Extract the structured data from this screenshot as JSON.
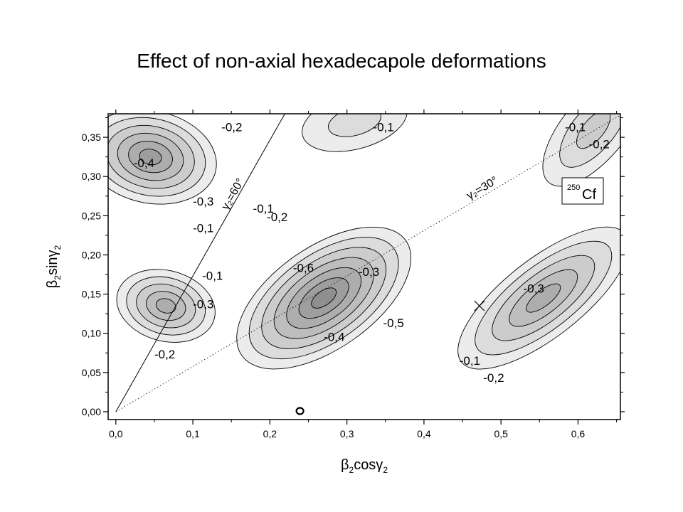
{
  "title": "Effect of non-axial hexadecapole deformations",
  "chart_data": {
    "type": "contour",
    "xlabel": "β₂cosγ₂",
    "ylabel": "β₂sinγ₂",
    "xlim": [
      -0.01,
      0.655
    ],
    "ylim": [
      -0.01,
      0.38
    ],
    "x_ticks": [
      {
        "v": 0.0,
        "label": "0,0"
      },
      {
        "v": 0.1,
        "label": "0,1"
      },
      {
        "v": 0.2,
        "label": "0,2"
      },
      {
        "v": 0.3,
        "label": "0,3"
      },
      {
        "v": 0.4,
        "label": "0,4"
      },
      {
        "v": 0.5,
        "label": "0,5"
      },
      {
        "v": 0.6,
        "label": "0,6"
      }
    ],
    "y_ticks": [
      {
        "v": 0.0,
        "label": "0,00"
      },
      {
        "v": 0.05,
        "label": "0,05"
      },
      {
        "v": 0.1,
        "label": "0,10"
      },
      {
        "v": 0.15,
        "label": "0,15"
      },
      {
        "v": 0.2,
        "label": "0,20"
      },
      {
        "v": 0.25,
        "label": "0,25"
      },
      {
        "v": 0.3,
        "label": "0,30"
      },
      {
        "v": 0.35,
        "label": "0,35"
      }
    ],
    "nucleus_label": "Cf",
    "nucleus_mass": "250",
    "line_labels": [
      {
        "text": "γ₂=60°",
        "angle": 60
      },
      {
        "text": "γ₂=30°",
        "angle": 30
      }
    ],
    "minima": [
      {
        "name": "upper-left",
        "cx": 0.045,
        "cy": 0.325,
        "depth": 0.45
      },
      {
        "name": "left",
        "cx": 0.065,
        "cy": 0.135,
        "depth": 0.35
      },
      {
        "name": "central",
        "cx": 0.27,
        "cy": 0.145,
        "depth": 0.65
      },
      {
        "name": "right",
        "cx": 0.555,
        "cy": 0.145,
        "depth": 0.35
      },
      {
        "name": "top-center",
        "cx": 0.31,
        "cy": 0.37,
        "depth": 0.12
      },
      {
        "name": "top-right",
        "cx": 0.62,
        "cy": 0.36,
        "depth": 0.2
      }
    ],
    "contour_labels": [
      {
        "text": "-0,2",
        "x": 0.137,
        "y": 0.358
      },
      {
        "text": "-0,4",
        "x": 0.023,
        "y": 0.312
      },
      {
        "text": "-0,3",
        "x": 0.1,
        "y": 0.263
      },
      {
        "text": "-0,1",
        "x": 0.1,
        "y": 0.229
      },
      {
        "text": "-0,1",
        "x": 0.178,
        "y": 0.254
      },
      {
        "text": "-0,2",
        "x": 0.196,
        "y": 0.243
      },
      {
        "text": "-0,1",
        "x": 0.112,
        "y": 0.168
      },
      {
        "text": "-0,3",
        "x": 0.1,
        "y": 0.132
      },
      {
        "text": "-0,2",
        "x": 0.05,
        "y": 0.068
      },
      {
        "text": "-0,6",
        "x": 0.23,
        "y": 0.178
      },
      {
        "text": "-0,3",
        "x": 0.315,
        "y": 0.173
      },
      {
        "text": "-0,5",
        "x": 0.347,
        "y": 0.108
      },
      {
        "text": "-0,4",
        "x": 0.27,
        "y": 0.09
      },
      {
        "text": "-0,1",
        "x": 0.334,
        "y": 0.358
      },
      {
        "text": "-0,1",
        "x": 0.583,
        "y": 0.358
      },
      {
        "text": "-0,2",
        "x": 0.614,
        "y": 0.336
      },
      {
        "text": "-0,3",
        "x": 0.529,
        "y": 0.152
      },
      {
        "text": "-0,1",
        "x": 0.446,
        "y": 0.06
      },
      {
        "text": "-0,2",
        "x": 0.477,
        "y": 0.038
      }
    ],
    "markers": [
      {
        "symbol": "x",
        "x": 0.472,
        "y": 0.135
      },
      {
        "symbol": "o",
        "x": 0.239,
        "y": 0.0
      }
    ],
    "fill_levels": [
      "#ececec",
      "#dcdcdc",
      "#cccccc",
      "#bdbdbd",
      "#adadad",
      "#9e9e9e",
      "#8f8f8f"
    ]
  }
}
